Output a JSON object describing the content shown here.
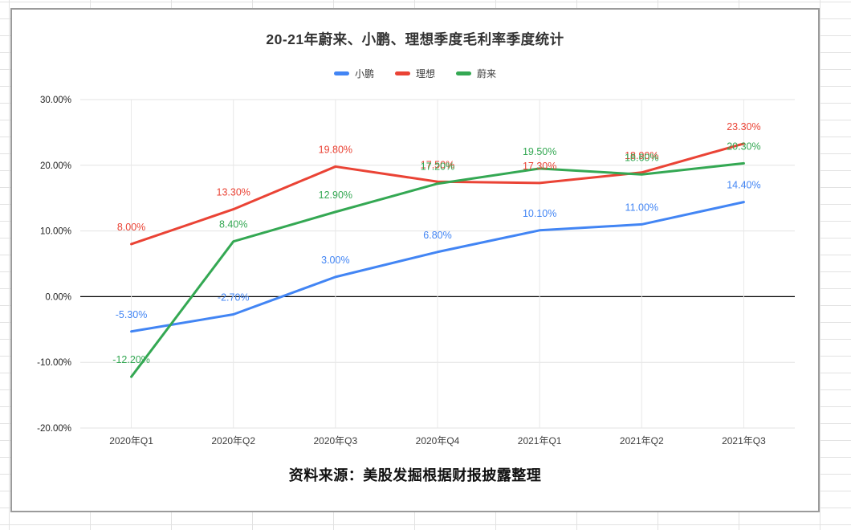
{
  "chart_data": {
    "type": "line",
    "title": "20-21年蔚来、小鹏、理想季度毛利率季度统计",
    "source_note": "资料来源：美股发掘根据财报披露整理",
    "categories": [
      "2020年Q1",
      "2020年Q2",
      "2020年Q3",
      "2020年Q4",
      "2021年Q1",
      "2021年Q2",
      "2021年Q3"
    ],
    "series": [
      {
        "name": "小鹏",
        "color": "#4285f4",
        "values": [
          -5.3,
          -2.7,
          3.0,
          6.8,
          10.1,
          11.0,
          14.4
        ],
        "point_labels": [
          "-5.30%",
          "-2.70%",
          "3.00%",
          "6.80%",
          "10.10%",
          "11.00%",
          "14.40%"
        ]
      },
      {
        "name": "理想",
        "color": "#ea4335",
        "values": [
          8.0,
          13.3,
          19.8,
          17.5,
          17.3,
          18.9,
          23.3
        ],
        "point_labels": [
          "8.00%",
          "13.30%",
          "19.80%",
          "17.50%",
          "17.30%",
          "18.90%",
          "23.30%"
        ]
      },
      {
        "name": "蔚来",
        "color": "#34a853",
        "values": [
          -12.2,
          8.4,
          12.9,
          17.2,
          19.5,
          18.6,
          20.3
        ],
        "point_labels": [
          "-12.20%",
          "8.40%",
          "12.90%",
          "17.20%",
          "19.50%",
          "18.60%",
          "20.30%"
        ]
      }
    ],
    "y_axis": {
      "tick_labels": [
        "30.00%",
        "20.00%",
        "10.00%",
        "0.00%",
        "-10.00%",
        "-20.00%"
      ],
      "tick_values": [
        30,
        20,
        10,
        0,
        -10,
        -20
      ],
      "ylim": [
        -20,
        30
      ]
    },
    "xlabel": "",
    "ylabel": "",
    "grid": true,
    "legend_position": "top",
    "zero_line_color": "#000000",
    "gridline_color": "#e3e3e3"
  }
}
